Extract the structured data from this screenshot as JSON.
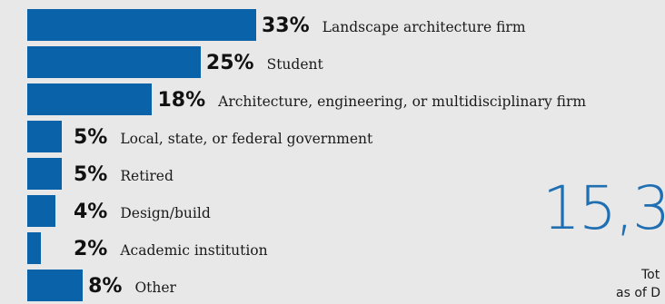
{
  "chart_data": {
    "type": "bar",
    "orientation": "horizontal",
    "categories": [
      "Landscape architecture firm",
      "Student",
      "Architecture, engineering, or multidisciplinary firm",
      "Local, state, or federal government",
      "Retired",
      "Design/build",
      "Academic institution",
      "Other"
    ],
    "values": [
      33,
      25,
      18,
      5,
      5,
      4,
      2,
      8
    ],
    "value_labels": [
      "33%",
      "25%",
      "18%",
      "5%",
      "5%",
      "4%",
      "2%",
      "8%"
    ],
    "colors": {
      "bar": "#0a62a8",
      "accent_number": "#1f6fb2"
    }
  },
  "stat": {
    "number": "15,3",
    "line1": "Tot",
    "line2": "as of D"
  }
}
